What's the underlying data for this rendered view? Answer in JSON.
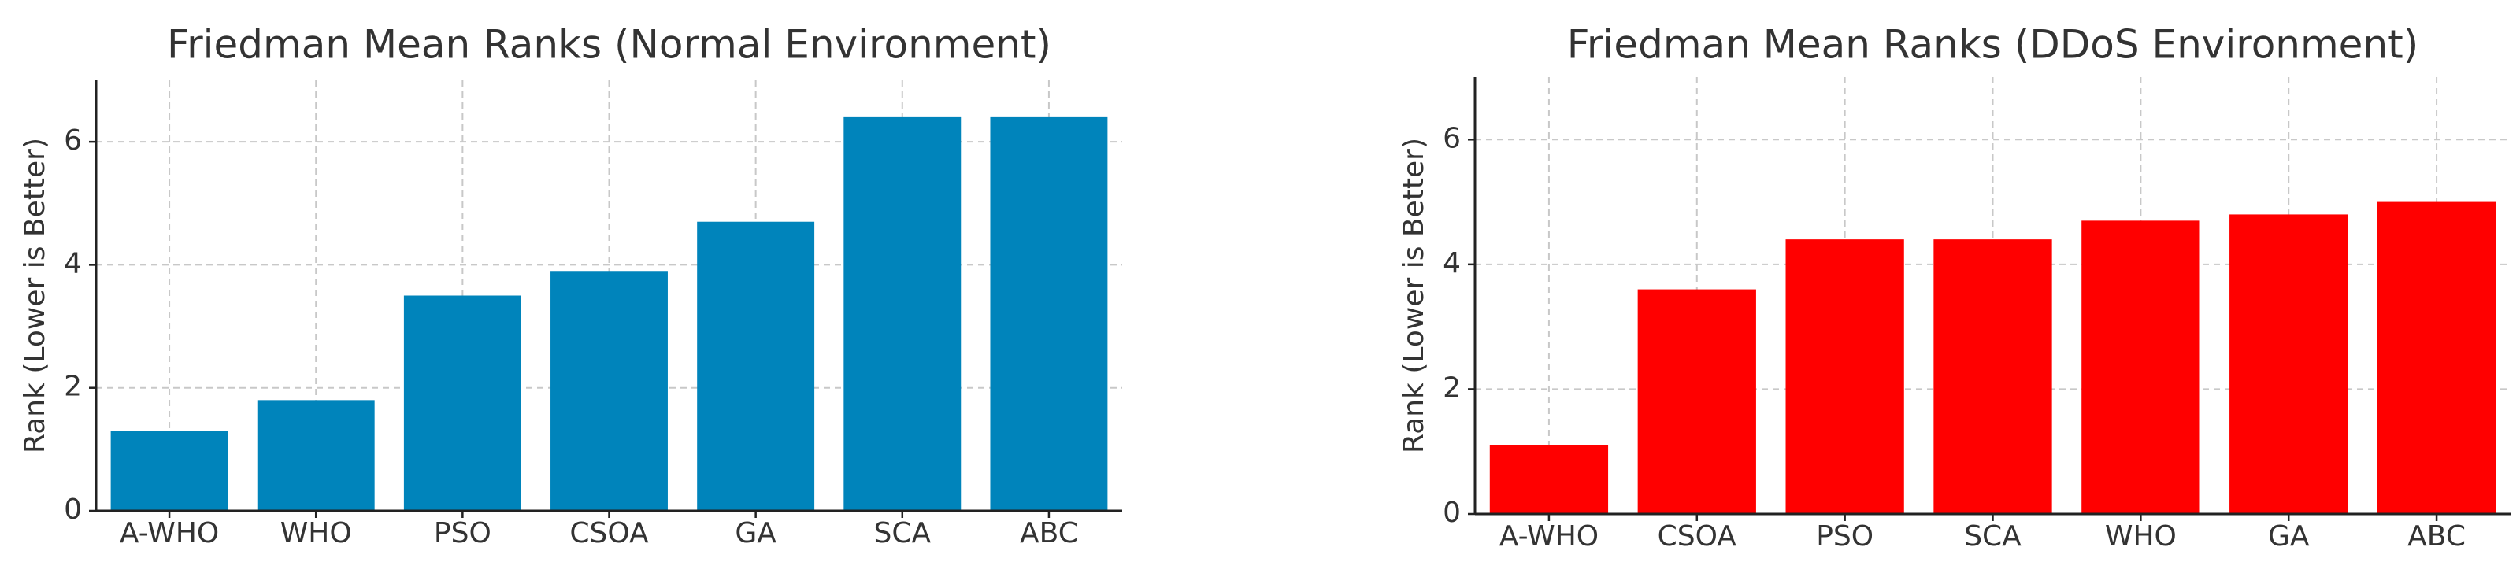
{
  "chart_data": [
    {
      "type": "bar",
      "title": "Friedman Mean Ranks (Normal Environment)",
      "y_label": "Rank (Lower is Better)",
      "categories": [
        "A-WHO",
        "WHO",
        "PSO",
        "CSOA",
        "GA",
        "SCA",
        "ABC"
      ],
      "values": [
        1.3,
        1.8,
        3.5,
        3.9,
        4.7,
        6.4,
        6.4
      ],
      "color": "#0084bb",
      "ylim": [
        0,
        7
      ],
      "yticks": [
        0,
        2,
        4,
        6
      ],
      "grid": true
    },
    {
      "type": "bar",
      "title": "Friedman Mean Ranks (DDoS Environment)",
      "y_label": "Rank (Lower is Better)",
      "categories": [
        "A-WHO",
        "CSOA",
        "PSO",
        "SCA",
        "WHO",
        "GA",
        "ABC"
      ],
      "values": [
        1.1,
        3.6,
        4.4,
        4.4,
        4.7,
        4.8,
        5.0
      ],
      "color": "#ff0000",
      "ylim": [
        0,
        7
      ],
      "yticks": [
        0,
        2,
        4,
        6
      ],
      "grid": true
    }
  ]
}
